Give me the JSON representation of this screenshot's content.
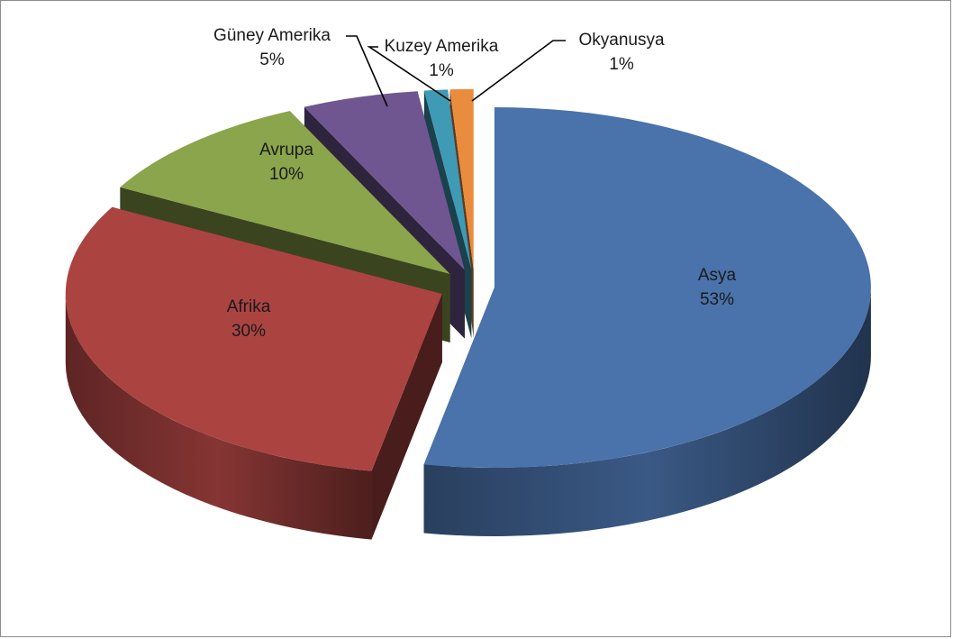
{
  "chart_data": {
    "type": "pie",
    "style": "3d-exploded",
    "title": "",
    "categories": [
      "Asya",
      "Afrika",
      "Avrupa",
      "Güney Amerika",
      "Kuzey Amerika",
      "Okyanusya"
    ],
    "values": [
      53,
      30,
      10,
      5,
      1,
      1
    ],
    "value_labels": [
      "53%",
      "30%",
      "10%",
      "5%",
      "1%",
      "1%"
    ],
    "colors": [
      "#4a72ab",
      "#ab4441",
      "#8aa54b",
      "#705691",
      "#3e9ab5",
      "#ea8c3d"
    ],
    "legend": "none"
  }
}
